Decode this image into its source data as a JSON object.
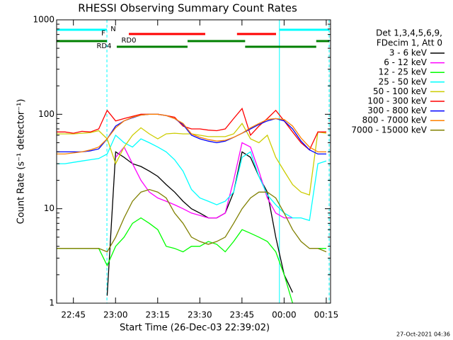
{
  "chart_data": {
    "type": "line",
    "title": "RHESSI Observing Summary Count Rates",
    "xlabel": "Start Time (26-Dec-03 22:39:02)",
    "ylabel": "Count Rate (s⁻¹ detector⁻¹)",
    "footer": "27-Oct-2021 04:36",
    "legend_header": [
      "Det 1,3,4,5,6,9,",
      "FDecim 1, Att 0"
    ],
    "legend": "upper right outside",
    "log_y": true,
    "xlim": [
      0,
      97.5
    ],
    "ylim": [
      1,
      1000
    ],
    "yticks": [
      1,
      10,
      100,
      1000
    ],
    "xticks": [
      {
        "value": 5.97,
        "label": "22:45"
      },
      {
        "value": 20.97,
        "label": "23:00"
      },
      {
        "value": 35.97,
        "label": "23:15"
      },
      {
        "value": 50.97,
        "label": "23:30"
      },
      {
        "value": 65.97,
        "label": "23:45"
      },
      {
        "value": 80.97,
        "label": "00:00"
      },
      {
        "value": 95.97,
        "label": "00:15"
      }
    ],
    "x": [
      0,
      3,
      6,
      9,
      12,
      15,
      18,
      21,
      24,
      27,
      30,
      33,
      36,
      39,
      42,
      45,
      48,
      51,
      54,
      57,
      60,
      63,
      66,
      69,
      72,
      75,
      78,
      81,
      84,
      87,
      90,
      93,
      96
    ],
    "series": [
      {
        "name": "3 - 6 keV",
        "color": "#000000",
        "values": [
          null,
          null,
          null,
          null,
          null,
          null,
          1.2,
          40,
          35,
          30,
          28,
          25,
          22,
          18,
          15,
          12,
          10,
          9,
          8,
          8,
          9,
          15,
          40,
          35,
          22,
          15,
          5,
          2,
          1.3,
          null,
          null,
          null,
          null
        ]
      },
      {
        "name": "6 - 12 keV",
        "color": "#ff00ff",
        "values": [
          null,
          null,
          null,
          null,
          null,
          null,
          null,
          35,
          45,
          30,
          20,
          15,
          13,
          12,
          11,
          10,
          9,
          8.5,
          8,
          8,
          9,
          20,
          50,
          45,
          25,
          13,
          9,
          8,
          8,
          null,
          null,
          null,
          null
        ]
      },
      {
        "name": "12 - 25 keV",
        "color": "#00ff00",
        "values": [
          3.8,
          3.8,
          3.8,
          3.8,
          3.8,
          3.8,
          2.5,
          4,
          5,
          7,
          8,
          7,
          6,
          4,
          3.8,
          3.5,
          4,
          4,
          4.5,
          4.2,
          3.5,
          4.5,
          6,
          5.5,
          5,
          4.5,
          3.5,
          2,
          1,
          null,
          null,
          3.8,
          3.8
        ]
      },
      {
        "name": "25 - 50 keV",
        "color": "#00ffff",
        "values": [
          30,
          30,
          31,
          32,
          33,
          34,
          38,
          60,
          50,
          45,
          55,
          50,
          45,
          40,
          33,
          25,
          16,
          13,
          12,
          11,
          12,
          15,
          35,
          40,
          22,
          14,
          11,
          9,
          8,
          8,
          7.5,
          30,
          32
        ]
      },
      {
        "name": "50 - 100 keV",
        "color": "#cccc00",
        "values": [
          62,
          62,
          62,
          63,
          64,
          67,
          55,
          30,
          45,
          60,
          72,
          62,
          55,
          62,
          63,
          62,
          62,
          60,
          58,
          58,
          58,
          62,
          80,
          55,
          50,
          60,
          35,
          25,
          18,
          15,
          14,
          65,
          63
        ]
      },
      {
        "name": "100 - 300 keV",
        "color": "#ff0000",
        "values": [
          65,
          65,
          63,
          66,
          65,
          70,
          110,
          85,
          90,
          95,
          100,
          100,
          100,
          97,
          93,
          75,
          70,
          70,
          68,
          67,
          70,
          90,
          115,
          60,
          75,
          90,
          110,
          85,
          65,
          50,
          42,
          65,
          65
        ]
      },
      {
        "name": "300 - 800 keV",
        "color": "#0000ff",
        "values": [
          40,
          40,
          40,
          40,
          41,
          43,
          55,
          75,
          85,
          92,
          98,
          100,
          100,
          97,
          90,
          78,
          60,
          55,
          52,
          50,
          52,
          57,
          63,
          70,
          78,
          85,
          90,
          85,
          70,
          52,
          42,
          38,
          38
        ]
      },
      {
        "name": "800 - 7000 keV",
        "color": "#ff8000",
        "values": [
          38,
          38,
          39,
          40,
          42,
          45,
          55,
          72,
          85,
          93,
          98,
          100,
          100,
          97,
          90,
          80,
          62,
          57,
          54,
          52,
          53,
          57,
          63,
          72,
          80,
          88,
          90,
          88,
          75,
          56,
          45,
          40,
          40
        ]
      },
      {
        "name": "7000 - 15000 keV",
        "color": "#808000",
        "values": [
          3.8,
          3.8,
          3.8,
          3.8,
          3.8,
          3.8,
          3.5,
          5,
          8,
          12,
          15,
          16,
          15,
          13,
          9,
          7,
          5,
          4.5,
          4.2,
          4.5,
          5,
          7,
          10,
          13,
          15,
          15,
          13,
          9,
          6,
          4.5,
          3.8,
          3.8,
          3.5
        ]
      }
    ],
    "markers": [
      {
        "x": 0,
        "dashed": false
      },
      {
        "x": 17.9,
        "dashed": true
      },
      {
        "x": 79.3,
        "dashed": false
      },
      {
        "x": 97,
        "dashed": true
      }
    ],
    "marker_color": "#00ffff",
    "flags": [
      {
        "name": "N",
        "color": "#00ffff",
        "intervals": [
          [
            0,
            17.9
          ],
          [
            79.3,
            97
          ]
        ]
      },
      {
        "name": "F",
        "color": "#ff0000",
        "intervals": [
          [
            25.7,
            52.9
          ],
          [
            64.2,
            78.1
          ]
        ]
      },
      {
        "name": "RD0",
        "color": "#008000",
        "intervals": [
          [
            0,
            17.9
          ],
          [
            46.6,
            67.1
          ],
          [
            92.4,
            97
          ]
        ]
      },
      {
        "name": "RD4",
        "color": "#008000",
        "intervals": [
          [
            21.4,
            46.6
          ],
          [
            67.1,
            92.4
          ]
        ]
      }
    ]
  }
}
